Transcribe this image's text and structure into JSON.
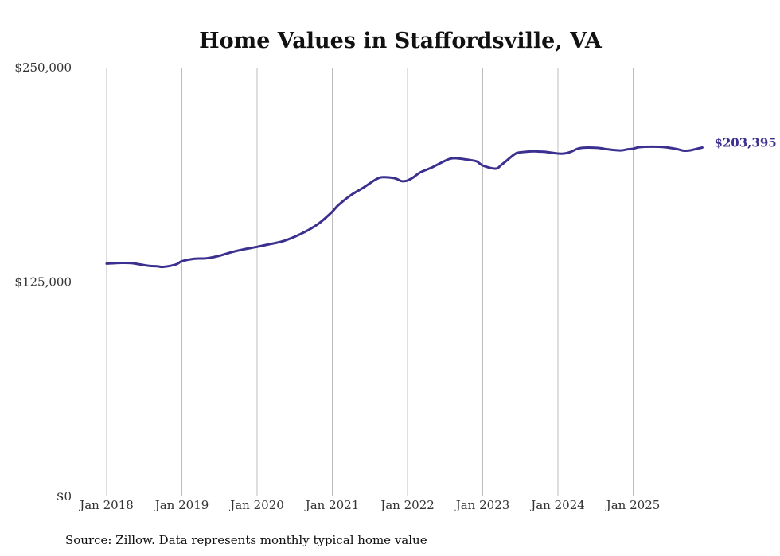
{
  "chart_data": {
    "type": "line",
    "title": "Home Values in Staffordsville, VA",
    "xlabel": "",
    "ylabel": "",
    "ylim": [
      0,
      250000
    ],
    "y_ticks": [
      {
        "value": 0,
        "label": "$0"
      },
      {
        "value": 125000,
        "label": "$125,000"
      },
      {
        "value": 250000,
        "label": "$250,000"
      }
    ],
    "x_ticks": [
      {
        "value": 2018,
        "label": "Jan 2018"
      },
      {
        "value": 2019,
        "label": "Jan 2019"
      },
      {
        "value": 2020,
        "label": "Jan 2020"
      },
      {
        "value": 2021,
        "label": "Jan 2021"
      },
      {
        "value": 2022,
        "label": "Jan 2022"
      },
      {
        "value": 2023,
        "label": "Jan 2023"
      },
      {
        "value": 2024,
        "label": "Jan 2024"
      },
      {
        "value": 2025,
        "label": "Jan 2025"
      }
    ],
    "xlim": [
      2018,
      2026
    ],
    "grid": "vertical",
    "series": [
      {
        "name": "Typical home value",
        "color": "#3b2f8f",
        "points": [
          [
            2018.0,
            135700
          ],
          [
            2018.17,
            136100
          ],
          [
            2018.33,
            136000
          ],
          [
            2018.5,
            134800
          ],
          [
            2018.58,
            134300
          ],
          [
            2018.67,
            134200
          ],
          [
            2018.75,
            133800
          ],
          [
            2018.92,
            135200
          ],
          [
            2019.0,
            137100
          ],
          [
            2019.17,
            138600
          ],
          [
            2019.33,
            138800
          ],
          [
            2019.5,
            140300
          ],
          [
            2019.67,
            142500
          ],
          [
            2019.83,
            144100
          ],
          [
            2020.0,
            145500
          ],
          [
            2020.17,
            147100
          ],
          [
            2020.33,
            148600
          ],
          [
            2020.5,
            151400
          ],
          [
            2020.67,
            155000
          ],
          [
            2020.83,
            159400
          ],
          [
            2021.0,
            166000
          ],
          [
            2021.08,
            169800
          ],
          [
            2021.25,
            175700
          ],
          [
            2021.42,
            180200
          ],
          [
            2021.58,
            184800
          ],
          [
            2021.67,
            186100
          ],
          [
            2021.83,
            185500
          ],
          [
            2021.92,
            183800
          ],
          [
            2022.0,
            184200
          ],
          [
            2022.08,
            186100
          ],
          [
            2022.17,
            188900
          ],
          [
            2022.33,
            191900
          ],
          [
            2022.5,
            195700
          ],
          [
            2022.58,
            197000
          ],
          [
            2022.67,
            197100
          ],
          [
            2022.83,
            196100
          ],
          [
            2022.92,
            195300
          ],
          [
            2023.0,
            192900
          ],
          [
            2023.17,
            191100
          ],
          [
            2023.25,
            193300
          ],
          [
            2023.42,
            199400
          ],
          [
            2023.5,
            200600
          ],
          [
            2023.67,
            201200
          ],
          [
            2023.75,
            201000
          ],
          [
            2023.83,
            200900
          ],
          [
            2024.0,
            199900
          ],
          [
            2024.08,
            199900
          ],
          [
            2024.17,
            200900
          ],
          [
            2024.25,
            202500
          ],
          [
            2024.33,
            203300
          ],
          [
            2024.5,
            203300
          ],
          [
            2024.58,
            202900
          ],
          [
            2024.67,
            202300
          ],
          [
            2024.83,
            201700
          ],
          [
            2024.92,
            202300
          ],
          [
            2025.0,
            202700
          ],
          [
            2025.08,
            203600
          ],
          [
            2025.25,
            203900
          ],
          [
            2025.42,
            203600
          ],
          [
            2025.58,
            202500
          ],
          [
            2025.67,
            201600
          ],
          [
            2025.75,
            201700
          ],
          [
            2025.83,
            202500
          ],
          [
            2025.92,
            203395
          ]
        ]
      }
    ],
    "end_label": "$203,395",
    "source": "Source: Zillow. Data represents monthly typical home value"
  }
}
